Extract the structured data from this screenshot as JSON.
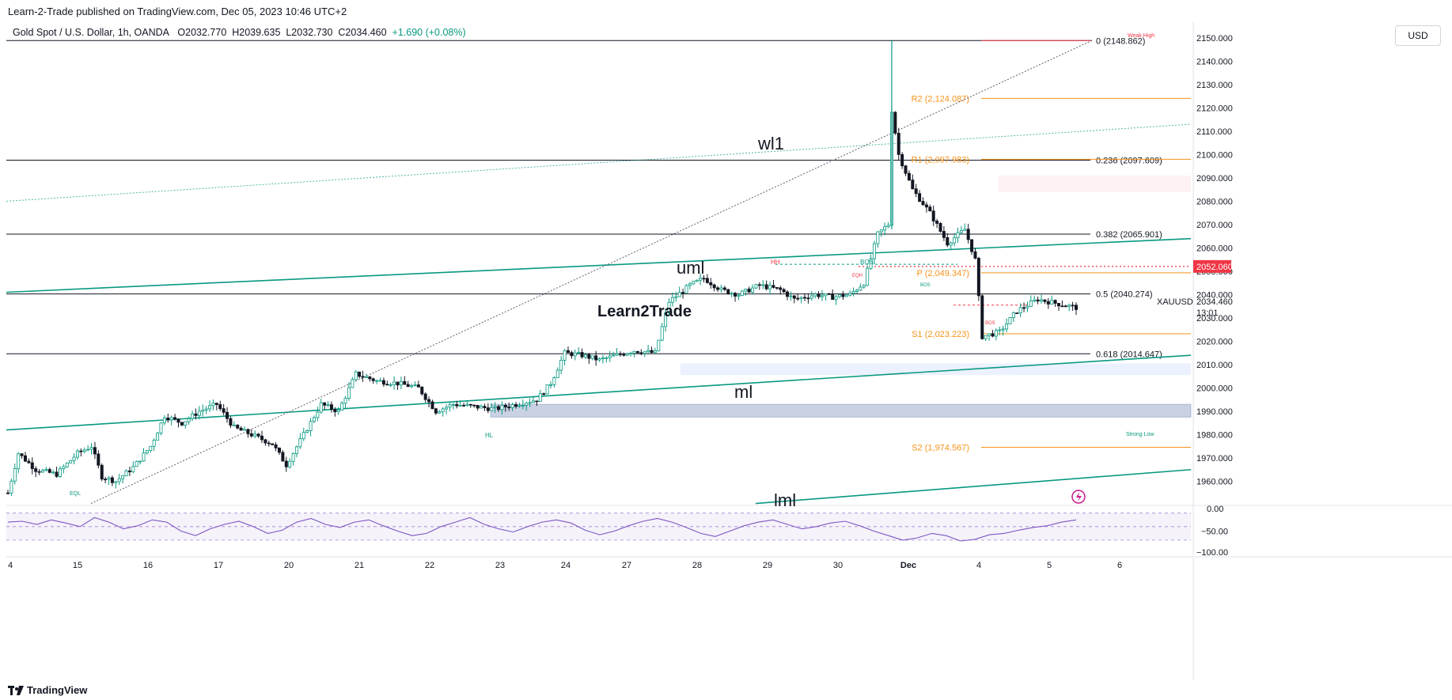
{
  "header": {
    "published": "Learn-2-Trade published on TradingView.com, Dec 05, 2023 10:46 UTC+2"
  },
  "legend": {
    "symbol": "Gold Spot / U.S. Dollar, 1h, OANDA",
    "open": "O2032.770",
    "high": "H2039.635",
    "low": "L2032.730",
    "close": "C2034.460",
    "change": "+1.690 (+0.08%)"
  },
  "currency_button": "USD",
  "footer": {
    "brand": "TradingView"
  },
  "watermark": "Learn2Trade",
  "colors": {
    "up": "#089981",
    "down": "#131722",
    "channel": "#089981",
    "pivot": "#f7931a",
    "fib": "#131722",
    "price_tag": "#f23645",
    "rsi": "#7e57c2"
  },
  "chart_data": {
    "type": "candlestick",
    "symbol": "XAUUSD",
    "timeframe": "1h",
    "ylim": [
      1950,
      2152
    ],
    "yticks": [
      1960,
      1970,
      1980,
      1990,
      2000,
      2010,
      2020,
      2030,
      2040,
      2050,
      2060,
      2070,
      2080,
      2090,
      2100,
      2110,
      2120,
      2130,
      2140,
      2150
    ],
    "yticks_labels": [
      "1960.000",
      "1970.000",
      "1980.000",
      "1990.000",
      "2000.000",
      "2010.000",
      "2020.000",
      "2030.000",
      "2040.000",
      "2050.000",
      "2060.000",
      "2070.000",
      "2080.000",
      "2090.000",
      "2100.000",
      "2110.000",
      "2120.000",
      "2130.000",
      "2140.000",
      "2150.000"
    ],
    "x_labels": [
      "4",
      "15",
      "16",
      "17",
      "20",
      "21",
      "22",
      "23",
      "24",
      "27",
      "28",
      "29",
      "30",
      "Dec",
      "4",
      "5",
      "6"
    ],
    "price_path": [
      [
        0,
        1955
      ],
      [
        3,
        1972
      ],
      [
        8,
        1965
      ],
      [
        14,
        1963
      ],
      [
        20,
        1972
      ],
      [
        24,
        1975
      ],
      [
        27,
        1962
      ],
      [
        31,
        1960
      ],
      [
        36,
        1966
      ],
      [
        41,
        1975
      ],
      [
        45,
        1988
      ],
      [
        50,
        1985
      ],
      [
        55,
        1990
      ],
      [
        60,
        1993
      ],
      [
        65,
        1983
      ],
      [
        70,
        1980
      ],
      [
        76,
        1976
      ],
      [
        80,
        1967
      ],
      [
        85,
        1980
      ],
      [
        90,
        1993
      ],
      [
        95,
        1990
      ],
      [
        100,
        2006
      ],
      [
        106,
        2003
      ],
      [
        112,
        2002
      ],
      [
        118,
        2000
      ],
      [
        123,
        1990
      ],
      [
        128,
        1993
      ],
      [
        134,
        1992
      ],
      [
        140,
        1991
      ],
      [
        146,
        1993
      ],
      [
        152,
        1995
      ],
      [
        156,
        2002
      ],
      [
        160,
        2015
      ],
      [
        165,
        2014
      ],
      [
        170,
        2012
      ],
      [
        175,
        2014
      ],
      [
        180,
        2016
      ],
      [
        186,
        2015
      ],
      [
        190,
        2037
      ],
      [
        196,
        2044
      ],
      [
        200,
        2047
      ],
      [
        205,
        2042
      ],
      [
        210,
        2040
      ],
      [
        216,
        2044
      ],
      [
        222,
        2042
      ],
      [
        226,
        2038
      ],
      [
        232,
        2040
      ],
      [
        237,
        2039
      ],
      [
        242,
        2040
      ],
      [
        246,
        2045
      ],
      [
        250,
        2066
      ],
      [
        253,
        2070
      ],
      [
        254,
        2119
      ],
      [
        256,
        2100
      ],
      [
        260,
        2085
      ],
      [
        265,
        2075
      ],
      [
        270,
        2062
      ],
      [
        275,
        2068
      ],
      [
        278,
        2055
      ],
      [
        280,
        2022
      ],
      [
        285,
        2024
      ],
      [
        290,
        2033
      ],
      [
        296,
        2038
      ],
      [
        302,
        2036
      ],
      [
        307,
        2034.46
      ]
    ],
    "horizontal_levels": [
      {
        "name": "0",
        "label": "0 (2148.862)",
        "value": 2148.862
      },
      {
        "name": "R2",
        "label": "R2 (2,124.087)",
        "value": 2124.087
      },
      {
        "name": "0.236",
        "label": "0.236 (2097.609)",
        "value": 2097.609
      },
      {
        "name": "R1",
        "label": "R1 (2,097.983)",
        "value": 2097.983
      },
      {
        "name": "0.382",
        "label": "0.382 (2065.901)",
        "value": 2065.901
      },
      {
        "name": "P",
        "label": "P (2,049.347)",
        "value": 2049.347
      },
      {
        "name": "0.5",
        "label": "0.5 (2040.274)",
        "value": 2040.274
      },
      {
        "name": "S1",
        "label": "S1 (2,023.223)",
        "value": 2023.223
      },
      {
        "name": "0.618",
        "label": "0.618 (2014.647)",
        "value": 2014.647
      },
      {
        "name": "S2",
        "label": "S2 (1,974.567)",
        "value": 1974.567
      }
    ],
    "line_labels": {
      "wl1": "wl1",
      "uml": "uml",
      "ml": "ml",
      "lml": "lml"
    },
    "structure_labels": {
      "weak_high": "Weak High",
      "hh": "HH",
      "bos_top": "BOS",
      "eqh": "EQH",
      "bos_small": "BOS",
      "bos_red": "BOS",
      "hl": "HL",
      "eql": "EQL",
      "strong_low": "Strong Low"
    },
    "current_price": {
      "value": 2034.46,
      "label": "2034.460",
      "countdown": "13:01",
      "symbol": "XAUUSD"
    },
    "alert_price": {
      "value": 2052.06,
      "label": "2052.060"
    },
    "rsi": {
      "yticks_labels": [
        "0.00",
        "−50.00",
        "−100.00"
      ],
      "values": [
        -30,
        -28,
        -35,
        -25,
        -32,
        -40,
        -20,
        -30,
        -45,
        -38,
        -25,
        -30,
        -50,
        -60,
        -45,
        -35,
        -28,
        -40,
        -55,
        -48,
        -30,
        -22,
        -35,
        -42,
        -30,
        -25,
        -38,
        -50,
        -60,
        -55,
        -40,
        -30,
        -20,
        -35,
        -45,
        -52,
        -40,
        -30,
        -25,
        -32,
        -48,
        -58,
        -50,
        -38,
        -28,
        -22,
        -30,
        -42,
        -55,
        -62,
        -50,
        -38,
        -30,
        -25,
        -35,
        -45,
        -40,
        -32,
        -28,
        -38,
        -50,
        -60,
        -70,
        -65,
        -55,
        -60,
        -72,
        -68,
        -58,
        -55,
        -48,
        -42,
        -38,
        -30,
        -25
      ]
    }
  }
}
